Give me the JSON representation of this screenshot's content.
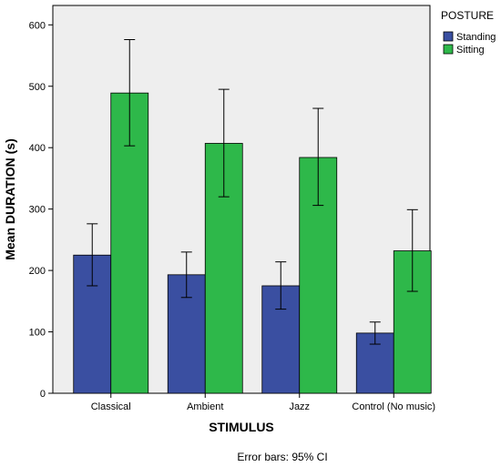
{
  "chart_data": {
    "type": "bar",
    "xlabel": "STIMULUS",
    "ylabel": "Mean DURATION (s)",
    "ylim": [
      0,
      650
    ],
    "yticks": [
      "0",
      "100",
      "200",
      "300",
      "400",
      "500",
      "600"
    ],
    "categories": [
      "Classical",
      "Ambient",
      "Jazz",
      "Control (No music)"
    ],
    "legend": {
      "title": "POSTURE",
      "position": "top-right"
    },
    "grid": false,
    "footnote": "Error bars: 95% CI",
    "series": [
      {
        "name": "Standing",
        "color": "#3a4fa1",
        "values": [
          225,
          193,
          175,
          98
        ],
        "ci_low": [
          175,
          156,
          137,
          80
        ],
        "ci_high": [
          276,
          230,
          214,
          116
        ]
      },
      {
        "name": "Sitting",
        "color": "#2eb84a",
        "values": [
          489,
          407,
          384,
          232
        ],
        "ci_low": [
          403,
          320,
          306,
          166
        ],
        "ci_high": [
          576,
          495,
          464,
          299
        ]
      }
    ],
    "plot_background": "#eeeeee"
  }
}
